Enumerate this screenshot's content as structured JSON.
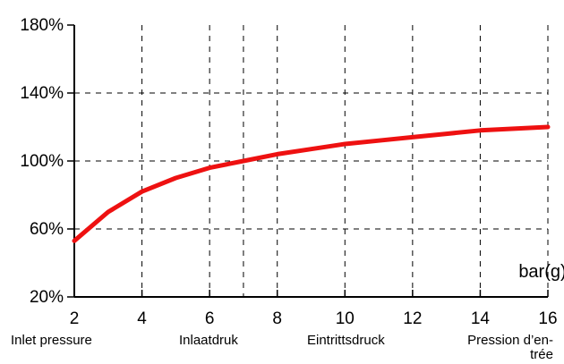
{
  "chart_data": {
    "type": "line",
    "title": "",
    "x_unit_label": "bar(g)",
    "xlim": [
      2,
      16
    ],
    "ylim": [
      20,
      180
    ],
    "x_ticks": [
      2,
      4,
      6,
      8,
      10,
      12,
      14,
      16
    ],
    "x_tick_labels": [
      "2",
      "4",
      "6",
      "8",
      "10",
      "12",
      "14",
      "16"
    ],
    "y_ticks": [
      20,
      60,
      100,
      140,
      180
    ],
    "y_tick_labels": [
      "20%",
      "60%",
      "100%",
      "140%",
      "180%"
    ],
    "vertical_grid": [
      4,
      6,
      7,
      8,
      10,
      12,
      14,
      16
    ],
    "horizontal_grid": [
      60,
      100,
      140
    ],
    "grid": "dashed",
    "x_captions": [
      "Inlet pressure",
      "Inlaatdruk",
      "Eintrittsdruck",
      "Pression d’en-",
      "trée"
    ],
    "series": [
      {
        "color": "#ee1111",
        "x": [
          2,
          3,
          4,
          5,
          6,
          7,
          8,
          9,
          10,
          11,
          12,
          13,
          14,
          15,
          16
        ],
        "y": [
          53,
          70,
          82,
          90,
          96,
          100,
          104,
          107,
          110,
          112,
          114,
          116,
          118,
          119,
          120
        ]
      }
    ]
  }
}
